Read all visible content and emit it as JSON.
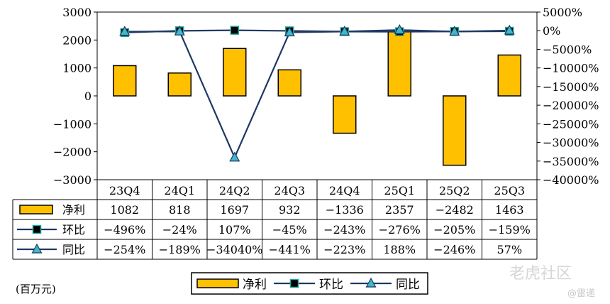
{
  "chart_data": {
    "type": "bar",
    "categories": [
      "23Q4",
      "24Q1",
      "24Q2",
      "24Q3",
      "24Q4",
      "25Q1",
      "25Q2",
      "25Q3"
    ],
    "series": [
      {
        "name": "净利",
        "kind": "bar",
        "axis": "left",
        "color": "#FFC000",
        "values": [
          1082,
          818,
          1697,
          932,
          -1336,
          2357,
          -2482,
          1463
        ],
        "labels": [
          "1082",
          "818",
          "1697",
          "932",
          "−1336",
          "2357",
          "−2482",
          "1463"
        ]
      },
      {
        "name": "环比",
        "kind": "line",
        "marker": "square",
        "axis": "right",
        "color": "#1F3864",
        "values": [
          -496,
          -24,
          107,
          -45,
          -243,
          -276,
          -205,
          -159
        ],
        "labels": [
          "−496%",
          "−24%",
          "107%",
          "−45%",
          "−243%",
          "−276%",
          "−205%",
          "−159%"
        ]
      },
      {
        "name": "同比",
        "kind": "line",
        "marker": "triangle",
        "axis": "right",
        "color": "#1F3864",
        "values": [
          -254,
          -189,
          -34040,
          -441,
          -223,
          188,
          -246,
          57
        ],
        "labels": [
          "−254%",
          "−189%",
          "−34040%",
          "−441%",
          "−223%",
          "188%",
          "−246%",
          "57%"
        ]
      }
    ],
    "y_left": {
      "ylim": [
        -3000,
        3000
      ],
      "ticks": [
        3000,
        2000,
        1000,
        0,
        -1000,
        -2000,
        -3000
      ],
      "tick_labels": [
        "3000",
        "2000",
        "1000",
        "0",
        "−1000",
        "−2000",
        "−3000"
      ]
    },
    "y_right": {
      "ylim": [
        -40000,
        5000
      ],
      "ticks": [
        5000,
        0,
        -5000,
        -10000,
        -15000,
        -20000,
        -25000,
        -30000,
        -35000,
        -40000
      ],
      "tick_labels": [
        "5000%",
        "0%",
        "−5000%",
        "−10000%",
        "−15000%",
        "−20000%",
        "−25000%",
        "−30000%",
        "−35000%",
        "−40000%"
      ]
    },
    "data_table": true,
    "legend_position": "bottom",
    "grid": false
  },
  "unit_label": "(百万元)",
  "watermark": {
    "text": "老虎社区",
    "sub": "@雷递"
  }
}
